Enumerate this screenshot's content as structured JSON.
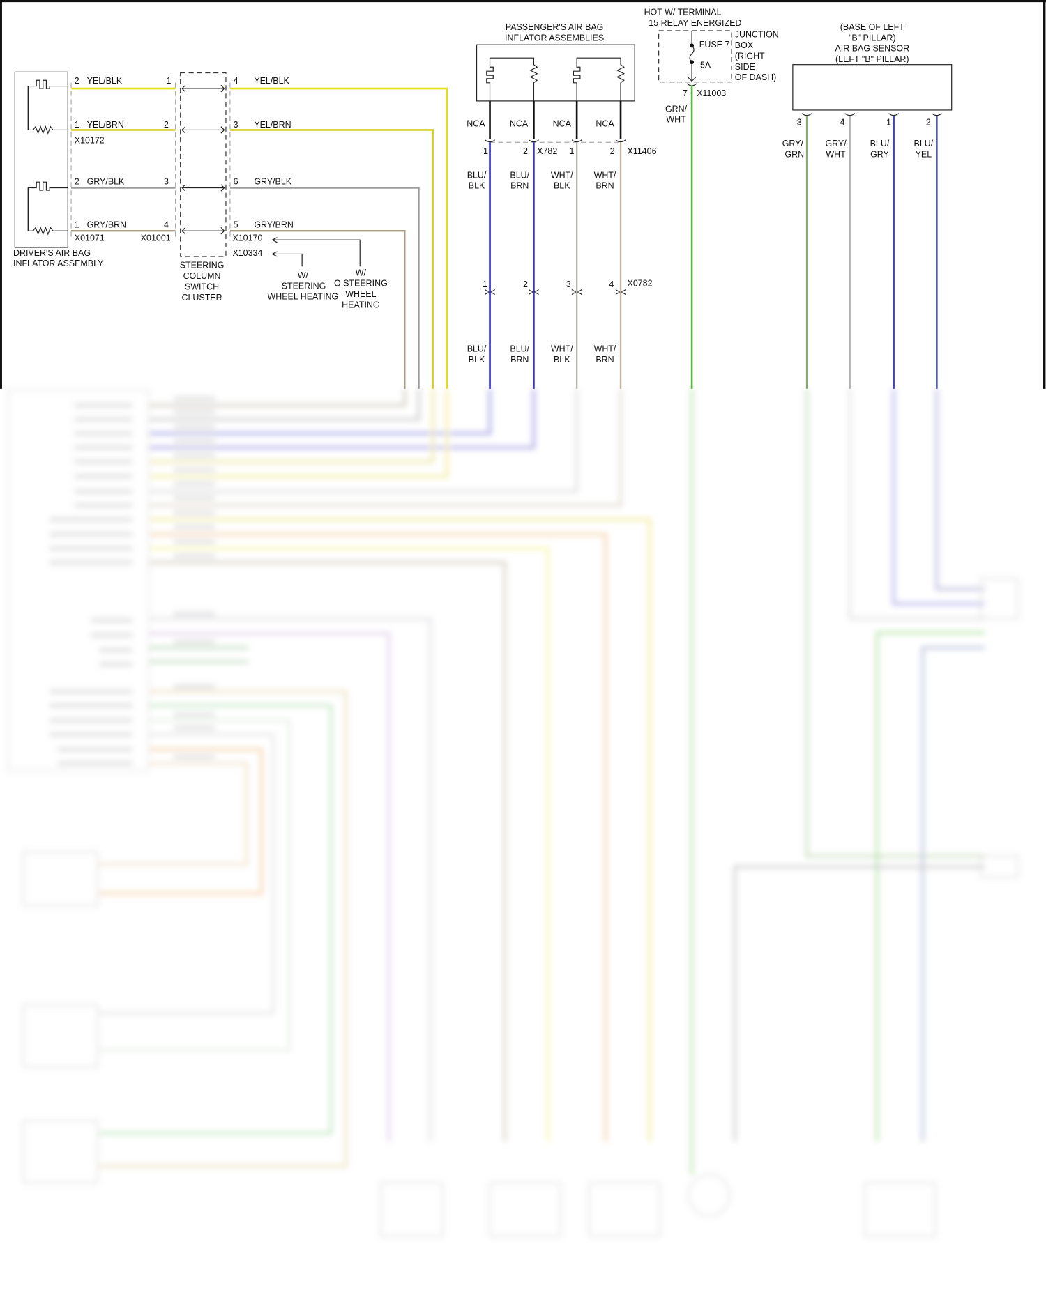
{
  "driver": {
    "title1": "DRIVER'S AIR BAG",
    "title2": "INFLATOR ASSEMBLY",
    "wires": [
      {
        "pin_l": "2",
        "label_l": "YEL/BLK",
        "pin_m": "1",
        "pin_r": "4",
        "label_r": "YEL/BLK",
        "color": "#e6dc1e"
      },
      {
        "pin_l": "1",
        "label_l": "YEL/BRN",
        "pin_m": "2",
        "pin_r": "3",
        "label_r": "YEL/BRN",
        "color": "#d8cc2a"
      },
      {
        "pin_l": "2",
        "label_l": "GRY/BLK",
        "pin_m": "3",
        "pin_r": "6",
        "label_r": "GRY/BLK",
        "color": "#9a9a9a"
      },
      {
        "pin_l": "1",
        "label_l": "GRY/BRN",
        "pin_m": "4",
        "pin_r": "5",
        "label_r": "GRY/BRN",
        "color": "#a89c84"
      }
    ],
    "connectors": {
      "x10172": "X10172",
      "x01071": "X01071",
      "x01001": "X01001",
      "x10170": "X10170",
      "x10334": "X10334"
    }
  },
  "steering_cluster": {
    "lines": [
      "STEERING",
      "COLUMN",
      "SWITCH",
      "CLUSTER"
    ]
  },
  "option_with_heating": {
    "lines": [
      "W/",
      "STEERING",
      "WHEEL HEATING"
    ]
  },
  "option_without_heating": {
    "lines": [
      "W/",
      "O STEERING",
      "WHEEL",
      "HEATING"
    ]
  },
  "passenger": {
    "title1": "PASSENGER'S AIR BAG",
    "title2": "INFLATOR ASSEMBLIES",
    "nca": [
      "NCA",
      "NCA",
      "NCA",
      "NCA"
    ],
    "pins_top": [
      "1",
      "2",
      "1",
      "2"
    ],
    "conn_x782": "X782",
    "conn_x11406": "X11406",
    "pins_mid": [
      "1",
      "2",
      "3",
      "4"
    ],
    "conn_x0782": "X0782",
    "wires": [
      {
        "l1": "BLU/",
        "l2": "BLK",
        "color": "#2c2cc8"
      },
      {
        "l1": "BLU/",
        "l2": "BRN",
        "color": "#3a34b8"
      },
      {
        "l1": "WHT/",
        "l2": "BLK",
        "color": "#b8b8b0"
      },
      {
        "l1": "WHT/",
        "l2": "BRN",
        "color": "#c4b89c"
      }
    ]
  },
  "power": {
    "title1": "HOT W/ TERMINAL",
    "title2": "15 RELAY ENERGIZED",
    "fuse": "FUSE 7",
    "amps": "5A",
    "box_lines": [
      "JUNCTION",
      "BOX",
      "(RIGHT",
      "SIDE",
      "OF DASH)"
    ],
    "pin": "7",
    "connector": "X11003",
    "wire_l1": "GRN/",
    "wire_l2": "WHT",
    "wire_color": "#5ab83c"
  },
  "sensor": {
    "lines": [
      "(BASE OF LEFT",
      "\"B\" PILLAR)",
      "AIR BAG SENSOR",
      "(LEFT \"B\" PILLAR)"
    ],
    "pins": [
      "3",
      "4",
      "1",
      "2"
    ],
    "wires": [
      {
        "l1": "GRY/",
        "l2": "GRN",
        "color": "#8aaa78"
      },
      {
        "l1": "GRY/",
        "l2": "WHT",
        "color": "#b4b4b4"
      },
      {
        "l1": "BLU/",
        "l2": "GRY",
        "color": "#4040c8"
      },
      {
        "l1": "BLU/",
        "l2": "YEL",
        "color": "#5058b0"
      }
    ]
  }
}
